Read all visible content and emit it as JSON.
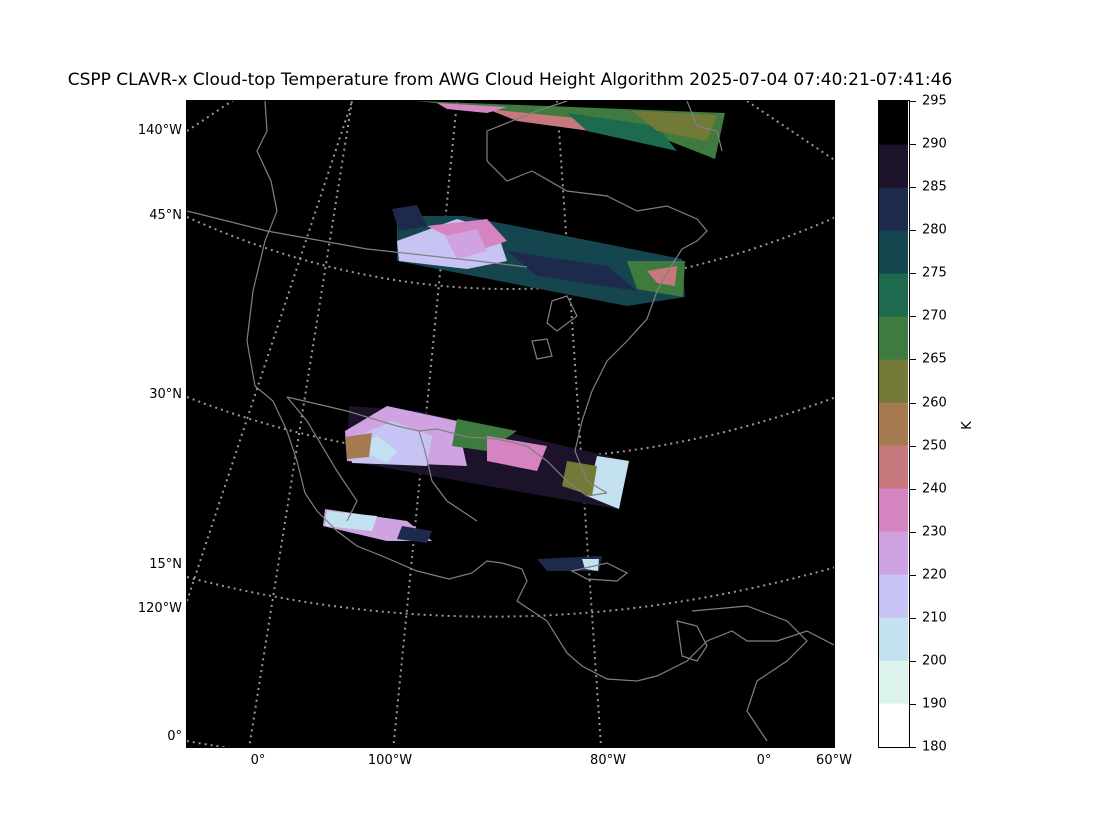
{
  "title": "CSPP CLAVR-x Cloud-top Temperature from AWG Cloud Height Algorithm 2025-07-04 07:40:21-07:41:46",
  "map": {
    "background_color": "#000000",
    "coastline_color": "#808080",
    "graticule_color": "#999999",
    "left_labels": [
      "140°W",
      "45°N",
      "30°N",
      "15°N",
      "120°W",
      "0°"
    ],
    "bottom_labels": [
      "0°",
      "100°W",
      "80°W",
      "0°",
      "60°W"
    ],
    "regions_shown": [
      "North America",
      "Central America",
      "Caribbean",
      "northern South America"
    ],
    "cloud_swaths": [
      {
        "name": "northern Canada swath",
        "dominant_colors": [
          "#3f7a3e",
          "#1d6a4e",
          "#c6787c"
        ]
      },
      {
        "name": "Great Lakes swath",
        "dominant_colors": [
          "#c7c3f4",
          "#d484c0",
          "#154650"
        ]
      },
      {
        "name": "Gulf of Mexico swath",
        "dominant_colors": [
          "#c7c3f4",
          "#d484c0",
          "#c4e1f2"
        ]
      },
      {
        "name": "Mexico swath",
        "dominant_colors": [
          "#c4e1f2",
          "#d484c0"
        ]
      }
    ]
  },
  "colorbar": {
    "unit": "K",
    "min": 180,
    "max": 295,
    "tick_labels": [
      "295",
      "290",
      "285",
      "280",
      "275",
      "270",
      "265",
      "260",
      "250",
      "240",
      "230",
      "220",
      "210",
      "200",
      "190",
      "180"
    ],
    "colors": [
      "#ffffff",
      "#ddf4ee",
      "#c4e1f2",
      "#c7c3f4",
      "#cfa3e2",
      "#d484c0",
      "#c6787c",
      "#a57a4e",
      "#737a37",
      "#3f7a3e",
      "#1d6a4e",
      "#154650",
      "#1d2a4c",
      "#1c1229",
      "#000000"
    ]
  }
}
